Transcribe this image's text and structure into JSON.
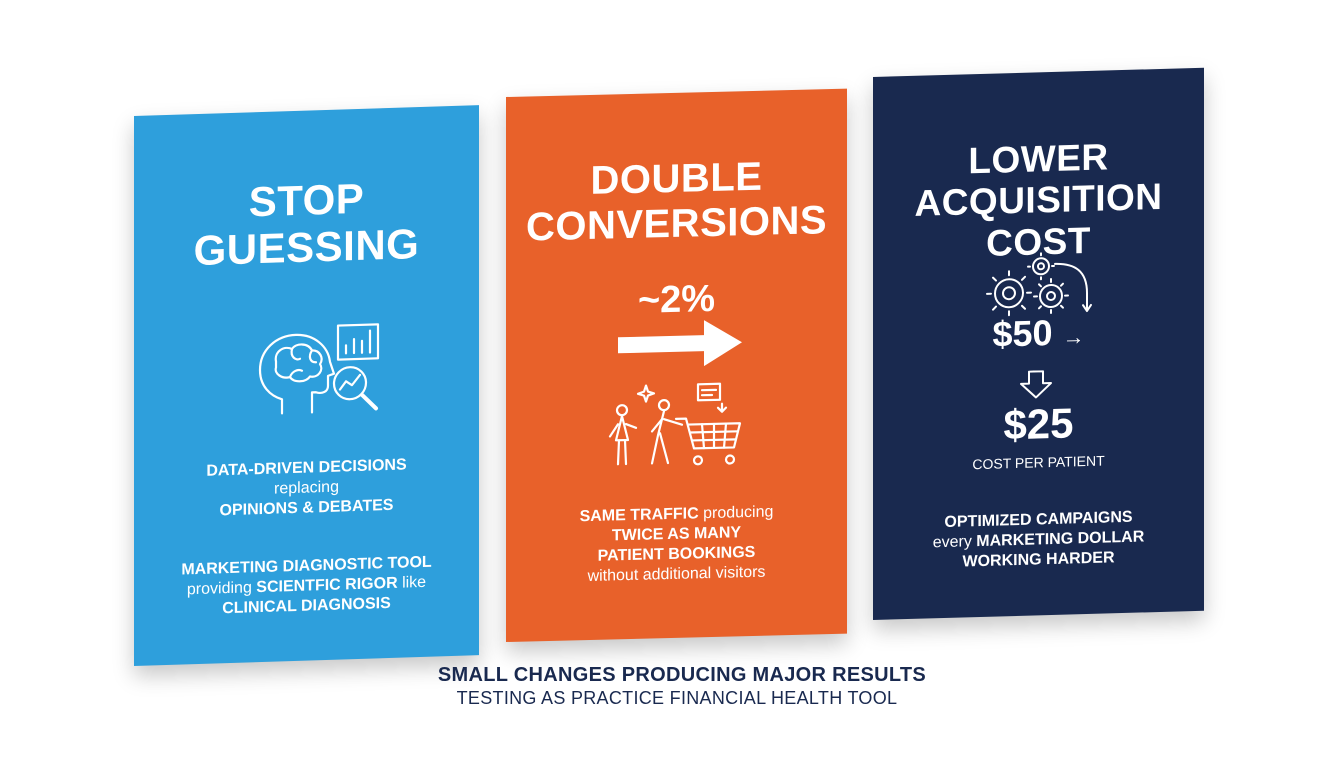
{
  "panels": {
    "stop_guessing": {
      "color": "#2e9fdc",
      "headline_1": "STOP",
      "headline_2": "GUESSING",
      "icon": "brain-analytics-icon",
      "line_1": "DATA-DRIVEN DECISIONS",
      "line_2": "replacing",
      "line_3": "OPINIONS & DEBATES",
      "line_4": "MARKETING DIAGNOSTIC TOOL",
      "line_5a": "providing ",
      "line_5b": "SCIENTFIC RIGOR",
      "line_5c": " like",
      "line_6": "CLINICAL DIAGNOSIS"
    },
    "double_conversions": {
      "color": "#e8612a",
      "headline_1": "DOUBLE",
      "headline_2": "CONVERSIONS",
      "stat": "~2%",
      "icon": "shoppers-cart-icon",
      "line_1a": "SAME TRAFFIC",
      "line_1b": " producing",
      "line_2": "TWICE AS MANY",
      "line_3": "PATIENT BOOKINGS",
      "line_4": "without additional visitors"
    },
    "lower_cost": {
      "color": "#19294f",
      "headline_1": "LOWER",
      "headline_2": "ACQUISITION COST",
      "icon": "gears-icon",
      "cost_before": "$50",
      "cost_after": "$25",
      "cost_label": "COST PER PATIENT",
      "line_1": "OPTIMIZED CAMPAIGNS",
      "line_2a": "every ",
      "line_2b": "MARKETING DOLLAR",
      "line_3": "WORKING HARDER"
    }
  },
  "footer": {
    "title": "SMALL CHANGES PRODUCING MAJOR RESULTS",
    "subtitle": "TESTING AS PRACTICE FINANCIAL HEALTH TOOL",
    "color": "#19294f"
  }
}
